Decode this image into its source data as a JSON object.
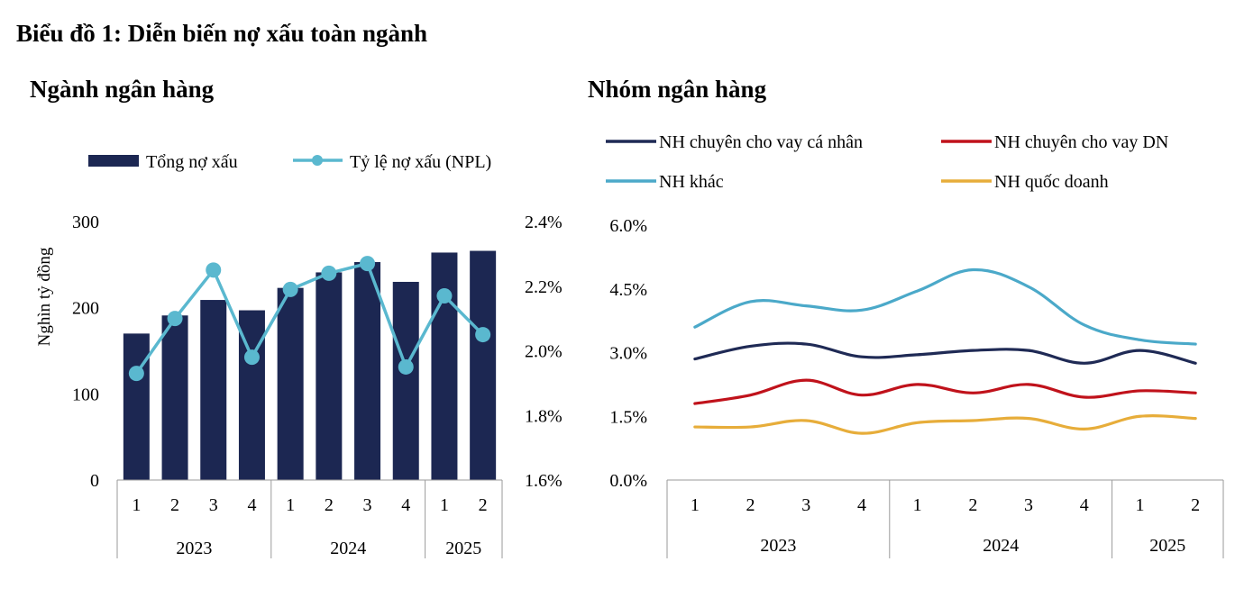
{
  "figure_title": "Biểu đồ 1: Diễn biến nợ xấu toàn ngành",
  "chart_data": [
    {
      "type": "bar+line",
      "title": "Ngành ngân hàng",
      "categories": [
        "1",
        "2",
        "3",
        "4",
        "1",
        "2",
        "3",
        "4",
        "1",
        "2"
      ],
      "groups": [
        {
          "label": "2023",
          "count": 4
        },
        {
          "label": "2024",
          "count": 4
        },
        {
          "label": "2025",
          "count": 2
        }
      ],
      "ylabel": "Nghìn tỷ đồng",
      "ylim": [
        0,
        300
      ],
      "yticks": [
        "0",
        "100",
        "200",
        "300"
      ],
      "y2lim": [
        1.6,
        2.4
      ],
      "y2ticks": [
        "1.6%",
        "1.8%",
        "2.0%",
        "2.2%",
        "2.4%"
      ],
      "legend_position": "top",
      "series": [
        {
          "name": "Tổng nợ xấu",
          "kind": "bar",
          "axis": "left",
          "color": "#1c2752",
          "values": [
            170,
            191,
            209,
            197,
            223,
            241,
            253,
            230,
            264,
            266
          ]
        },
        {
          "name": "Tỷ lệ nợ xấu (NPL)",
          "kind": "line",
          "axis": "right",
          "color": "#5ab8cf",
          "values": [
            1.93,
            2.1,
            2.25,
            1.98,
            2.19,
            2.24,
            2.27,
            1.95,
            2.17,
            2.05
          ]
        }
      ]
    },
    {
      "type": "line",
      "title": "Nhóm ngân hàng",
      "categories": [
        "1",
        "2",
        "3",
        "4",
        "1",
        "2",
        "3",
        "4",
        "1",
        "2"
      ],
      "groups": [
        {
          "label": "2023",
          "count": 4
        },
        {
          "label": "2024",
          "count": 4
        },
        {
          "label": "2025",
          "count": 2
        }
      ],
      "ylim": [
        0.0,
        6.0
      ],
      "yticks": [
        "0.0%",
        "1.5%",
        "3.0%",
        "4.5%",
        "6.0%"
      ],
      "legend_position": "top",
      "series": [
        {
          "name": "NH chuyên cho vay cá nhân",
          "color": "#1f2a55",
          "values": [
            2.85,
            3.15,
            3.2,
            2.9,
            2.95,
            3.05,
            3.05,
            2.75,
            3.05,
            2.75
          ]
        },
        {
          "name": "NH chuyên cho vay DN",
          "color": "#c0121b",
          "values": [
            1.8,
            2.0,
            2.35,
            2.0,
            2.25,
            2.05,
            2.25,
            1.95,
            2.1,
            2.05
          ]
        },
        {
          "name": "NH khác",
          "color": "#4ba9c9",
          "values": [
            3.6,
            4.2,
            4.1,
            4.0,
            4.45,
            4.95,
            4.55,
            3.65,
            3.3,
            3.2
          ]
        },
        {
          "name": "NH quốc doanh",
          "color": "#e7ad3a",
          "values": [
            1.25,
            1.25,
            1.4,
            1.1,
            1.35,
            1.4,
            1.45,
            1.2,
            1.5,
            1.45
          ]
        }
      ]
    }
  ]
}
